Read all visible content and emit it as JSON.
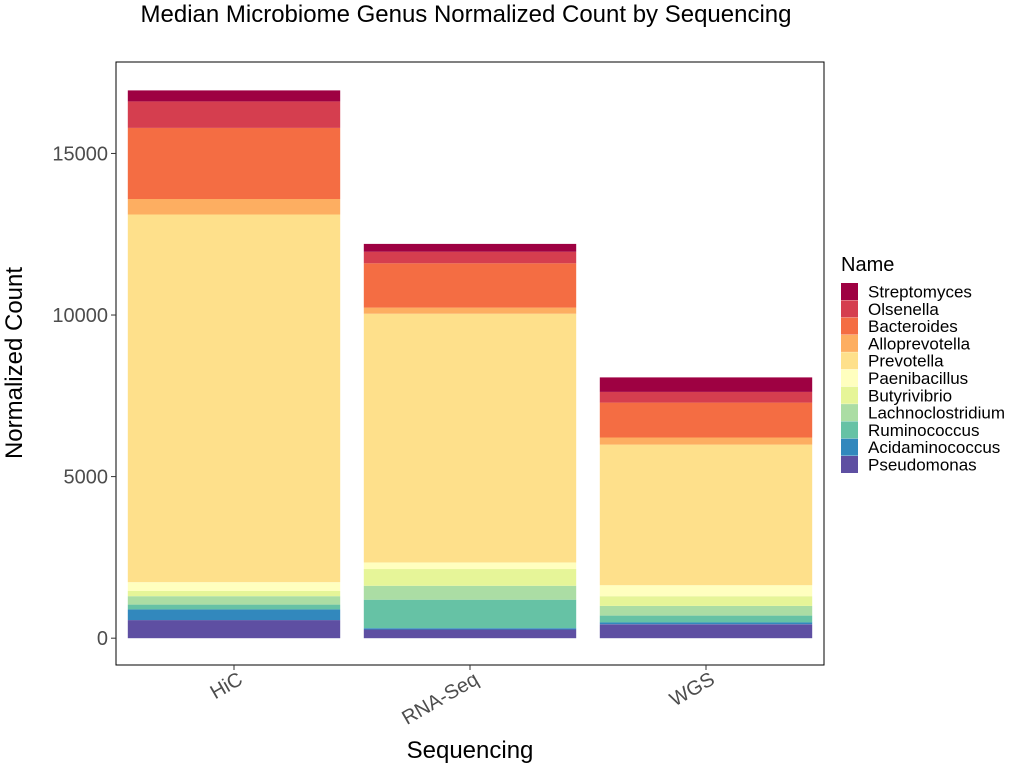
{
  "chart_data": {
    "type": "bar",
    "stacked": true,
    "title": "Median Microbiome Genus Normalized Count by Sequencing",
    "xlabel": "Sequencing",
    "ylabel": "Normalized Count",
    "categories": [
      "HiC",
      "RNA-Seq",
      "WGS"
    ],
    "ylim": [
      -830,
      17830
    ],
    "yticks": [
      0,
      5000,
      10000,
      15000
    ],
    "grid": false,
    "legend": {
      "title": "Name",
      "position": "right"
    },
    "series": [
      {
        "name": "Pseudomonas",
        "color": "#5E4FA2",
        "values": [
          560,
          270,
          430
        ]
      },
      {
        "name": "Acidaminococcus",
        "color": "#3288BD",
        "values": [
          330,
          40,
          60
        ]
      },
      {
        "name": "Ruminococcus",
        "color": "#66C2A5",
        "values": [
          150,
          880,
          210
        ]
      },
      {
        "name": "Lachnoclostridium",
        "color": "#ABDDA4",
        "values": [
          260,
          430,
          300
        ]
      },
      {
        "name": "Butyrivibrio",
        "color": "#E6F598",
        "values": [
          160,
          520,
          300
        ]
      },
      {
        "name": "Paenibacillus",
        "color": "#FFFFBF",
        "values": [
          270,
          200,
          340
        ]
      },
      {
        "name": "Prevotella",
        "color": "#FEE08B",
        "values": [
          11380,
          7700,
          4350
        ]
      },
      {
        "name": "Alloprevotella",
        "color": "#FDAE61",
        "values": [
          480,
          190,
          220
        ]
      },
      {
        "name": "Bacteroides",
        "color": "#F46D43",
        "values": [
          2200,
          1370,
          1080
        ]
      },
      {
        "name": "Olsenella",
        "color": "#D53E4F",
        "values": [
          820,
          360,
          330
        ]
      },
      {
        "name": "Streptomyces",
        "color": "#9E0142",
        "values": [
          340,
          240,
          450
        ]
      }
    ]
  }
}
